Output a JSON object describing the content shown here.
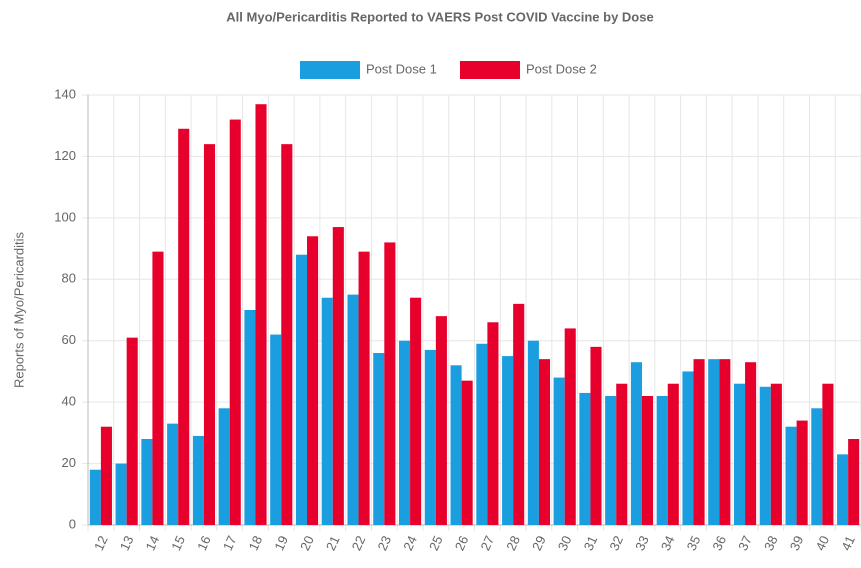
{
  "chart_data": {
    "type": "bar",
    "title": "All Myo/Pericarditis Reported to VAERS Post COVID Vaccine by Dose",
    "y_label": "Reports of Myo/Pericarditis",
    "categories": [
      "12",
      "13",
      "14",
      "15",
      "16",
      "17",
      "18",
      "19",
      "20",
      "21",
      "22",
      "23",
      "24",
      "25",
      "26",
      "27",
      "28",
      "29",
      "30",
      "31",
      "32",
      "33",
      "34",
      "35",
      "36",
      "37",
      "38",
      "39",
      "40",
      "41"
    ],
    "series": [
      {
        "name": "Post Dose 1",
        "color": "#1a9ee0",
        "values": [
          18,
          20,
          28,
          33,
          29,
          38,
          70,
          62,
          88,
          74,
          75,
          56,
          60,
          57,
          52,
          59,
          55,
          60,
          48,
          43,
          42,
          53,
          42,
          50,
          54,
          46,
          45,
          32,
          38,
          23
        ]
      },
      {
        "name": "Post Dose 2",
        "color": "#e8002c",
        "values": [
          32,
          61,
          89,
          129,
          124,
          132,
          137,
          124,
          94,
          97,
          89,
          92,
          74,
          68,
          47,
          66,
          72,
          54,
          64,
          58,
          46,
          42,
          46,
          54,
          54,
          53,
          46,
          34,
          46,
          28
        ]
      }
    ],
    "ylim": [
      0,
      140
    ],
    "yticks": [
      0,
      20,
      40,
      60,
      80,
      100,
      120,
      140
    ],
    "grid": true,
    "legend": "top"
  }
}
